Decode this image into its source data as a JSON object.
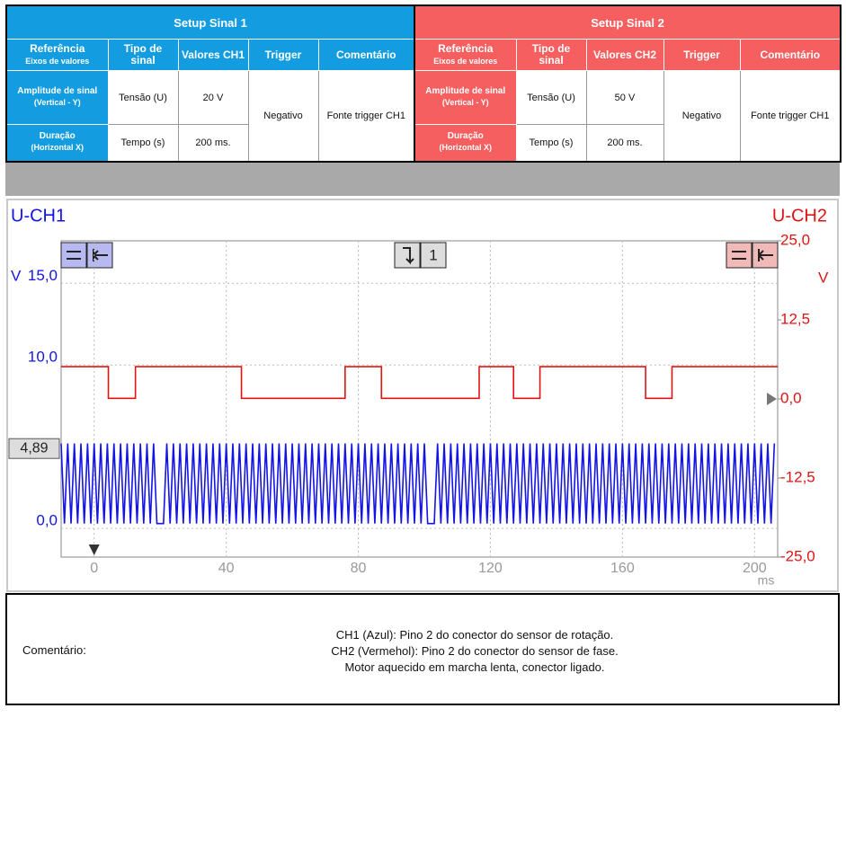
{
  "setup": [
    {
      "title": "Setup Sinal 1",
      "columns": [
        {
          "label": "Referência",
          "sub": "Eixos de valores"
        },
        {
          "label": "Tipo de sinal"
        },
        {
          "label": "Valores CH1"
        },
        {
          "label": "Trigger"
        },
        {
          "label": "Comentário"
        }
      ],
      "rows": [
        {
          "label": "Amplitude de sinal",
          "sub": "(Vertical - Y)",
          "type": "Tensão (U)",
          "value": "20 V"
        },
        {
          "label": "Duração",
          "sub": "(Horizontal X)",
          "type": "Tempo (s)",
          "value": "200 ms."
        }
      ],
      "trigger": "Negativo",
      "comment": "Fonte trigger CH1"
    },
    {
      "title": "Setup Sinal 2",
      "columns": [
        {
          "label": "Referência",
          "sub": "Eixos de valores"
        },
        {
          "label": "Tipo de sinal"
        },
        {
          "label": "Valores CH2"
        },
        {
          "label": "Trigger"
        },
        {
          "label": "Comentário"
        }
      ],
      "rows": [
        {
          "label": "Amplitude de sinal",
          "sub": "(Vertical - Y)",
          "type": "Tensão (U)",
          "value": "50 V"
        },
        {
          "label": "Duração",
          "sub": "(Horizontal X)",
          "type": "Tempo (s)",
          "value": "200 ms."
        }
      ],
      "trigger": "Negativo",
      "comment": "Fonte trigger CH1"
    }
  ],
  "chart_data": {
    "type": "line",
    "y_label": "U-CH1",
    "y2_label": "U-CH2",
    "y_unit": "V",
    "y2_unit": "V",
    "x_label": "ms",
    "trigger_channel": "1",
    "trigger_level": {
      "value": 4.89,
      "label": "4,89"
    },
    "xlim": [
      -10,
      207
    ],
    "xticks": [
      0,
      40,
      80,
      120,
      160,
      200
    ],
    "ylim": [
      -1.75,
      17.6
    ],
    "yticks": [
      {
        "value": 0,
        "label": "0,0"
      },
      {
        "value": 10,
        "label": "10,0"
      },
      {
        "value": 15,
        "label": "15,0"
      }
    ],
    "y2lim": [
      -25,
      25
    ],
    "y2ticks": [
      {
        "value": -25,
        "label": "-25,0"
      },
      {
        "value": -12.5,
        "label": "-12,5"
      },
      {
        "value": 0,
        "label": "0,0"
      },
      {
        "value": 12.5,
        "label": "12,5"
      },
      {
        "value": 25,
        "label": "25,0"
      }
    ],
    "grid": true,
    "series": [
      {
        "color": "#1414e6",
        "axis": "y",
        "x": [
          -10,
          -9,
          -8,
          -7,
          -6,
          -5,
          -4,
          -3,
          -2,
          -1,
          0,
          1,
          2,
          3,
          4,
          5,
          6,
          7,
          8,
          9,
          10,
          11,
          12,
          13,
          14,
          15,
          16,
          17,
          18,
          19,
          20,
          21,
          22,
          23,
          24,
          25,
          26,
          27,
          28,
          29,
          30,
          31,
          32,
          33,
          34,
          35,
          36,
          37,
          38,
          39,
          40,
          41,
          42,
          43,
          44,
          45,
          46,
          47,
          48,
          49,
          50,
          51,
          52,
          53,
          54,
          55,
          56,
          57,
          58,
          59,
          60,
          61,
          62,
          63,
          64,
          65,
          66,
          67,
          68,
          69,
          70,
          71,
          72,
          73,
          74,
          75,
          76,
          77,
          78,
          79,
          80,
          81,
          82,
          83,
          84,
          85,
          86,
          87,
          88,
          89,
          90,
          91,
          92,
          93,
          94,
          95,
          96,
          97,
          98,
          99,
          100,
          101,
          102,
          103,
          104,
          105,
          106,
          107,
          108,
          109,
          110,
          111,
          112,
          113,
          114,
          115,
          116,
          117,
          118,
          119,
          120,
          121,
          122,
          123,
          124,
          125,
          126,
          127,
          128,
          129,
          130,
          131,
          132,
          133,
          134,
          135,
          136,
          137,
          138,
          139,
          140,
          141,
          142,
          143,
          144,
          145,
          146,
          147,
          148,
          149,
          150,
          151,
          152,
          153,
          154,
          155,
          156,
          157,
          158,
          159,
          160,
          161,
          162,
          163,
          164,
          165,
          166,
          167,
          168,
          169,
          170,
          171,
          172,
          173,
          174,
          175,
          176,
          177,
          178,
          179,
          180,
          181,
          182,
          183,
          184,
          185,
          186,
          187,
          188,
          189,
          190,
          191,
          192,
          193,
          194,
          195,
          196,
          197,
          198,
          199,
          200,
          201,
          202,
          203,
          204,
          205,
          206
        ],
        "values": [
          5.2,
          0.3,
          5.2,
          0.3,
          5.2,
          0.3,
          5.2,
          0.3,
          5.2,
          0.3,
          5.2,
          0.3,
          5.2,
          0.3,
          5.2,
          0.3,
          5.2,
          0.3,
          5.2,
          0.3,
          5.2,
          0.3,
          5.2,
          0.3,
          5.2,
          0.3,
          5.2,
          0.3,
          5.2,
          0.3,
          0.3,
          0.3,
          5.2,
          0.3,
          5.2,
          0.3,
          5.2,
          0.3,
          5.2,
          0.3,
          5.2,
          0.3,
          5.2,
          0.3,
          5.2,
          0.3,
          5.2,
          0.3,
          5.2,
          0.3,
          5.2,
          0.3,
          5.2,
          0.3,
          5.2,
          0.3,
          5.2,
          0.3,
          5.2,
          0.3,
          5.2,
          0.3,
          5.2,
          0.3,
          5.2,
          0.3,
          5.2,
          0.3,
          5.2,
          0.3,
          5.2,
          0.3,
          5.2,
          0.3,
          5.2,
          0.3,
          5.2,
          0.3,
          5.2,
          0.3,
          5.2,
          0.3,
          5.2,
          0.3,
          5.2,
          0.3,
          5.2,
          0.3,
          5.2,
          0.3,
          5.2,
          0.3,
          5.2,
          0.3,
          5.2,
          0.3,
          5.2,
          0.3,
          5.2,
          0.3,
          5.2,
          0.3,
          5.2,
          0.3,
          5.2,
          0.3,
          5.2,
          0.3,
          5.2,
          0.3,
          5.2,
          0.3,
          0.3,
          0.3,
          5.2,
          0.3,
          5.2,
          0.3,
          5.2,
          0.3,
          5.2,
          0.3,
          5.2,
          0.3,
          5.2,
          0.3,
          5.2,
          0.3,
          5.2,
          0.3,
          5.2,
          0.3,
          5.2,
          0.3,
          5.2,
          0.3,
          5.2,
          0.3,
          5.2,
          0.3,
          5.2,
          0.3,
          5.2,
          0.3,
          5.2,
          0.3,
          5.2,
          0.3,
          5.2,
          0.3,
          5.2,
          0.3,
          5.2,
          0.3,
          5.2,
          0.3,
          5.2,
          0.3,
          5.2,
          0.3,
          5.2,
          0.3,
          5.2,
          0.3,
          5.2,
          0.3,
          5.2,
          0.3,
          5.2,
          0.3,
          5.2,
          0.3,
          5.2,
          0.3,
          5.2,
          0.3,
          5.2,
          0.3,
          5.2,
          0.3,
          5.2,
          0.3,
          5.2,
          0.3,
          5.2,
          0.3,
          5.2,
          0.3,
          5.2,
          0.3,
          5.2,
          0.3,
          5.2,
          0.3,
          5.2,
          0.3,
          5.2,
          0.3,
          5.2,
          0.3,
          5.2,
          0.3,
          5.2,
          0.3,
          5.2,
          0.3,
          5.2,
          0.3,
          5.2,
          0.3,
          5.2,
          0.3,
          5.2,
          0.3,
          5.2,
          0.3,
          5.2
        ]
      },
      {
        "color": "#e01414",
        "axis": "y2",
        "x": [
          -10,
          4.3,
          4.3,
          12.5,
          12.5,
          44.6,
          44.6,
          76,
          76,
          87,
          87,
          116.6,
          116.6,
          127,
          127,
          135,
          135,
          167,
          167,
          175,
          175,
          207
        ],
        "values": [
          5.1,
          5.1,
          0.1,
          0.1,
          5.1,
          5.1,
          0.1,
          0.1,
          5.1,
          5.1,
          0.1,
          0.1,
          5.1,
          5.1,
          0.1,
          0.1,
          5.1,
          5.1,
          0.1,
          0.1,
          5.1,
          5.1
        ]
      }
    ]
  },
  "footer": {
    "label": "Comentário:",
    "lines": [
      "CH1 (Azul): Pino 2 do conector do sensor de rotação.",
      "CH2 (Vermehol): Pino 2 do conector do sensor de fase.",
      "Motor aquecido em marcha lenta, conector ligado."
    ]
  }
}
